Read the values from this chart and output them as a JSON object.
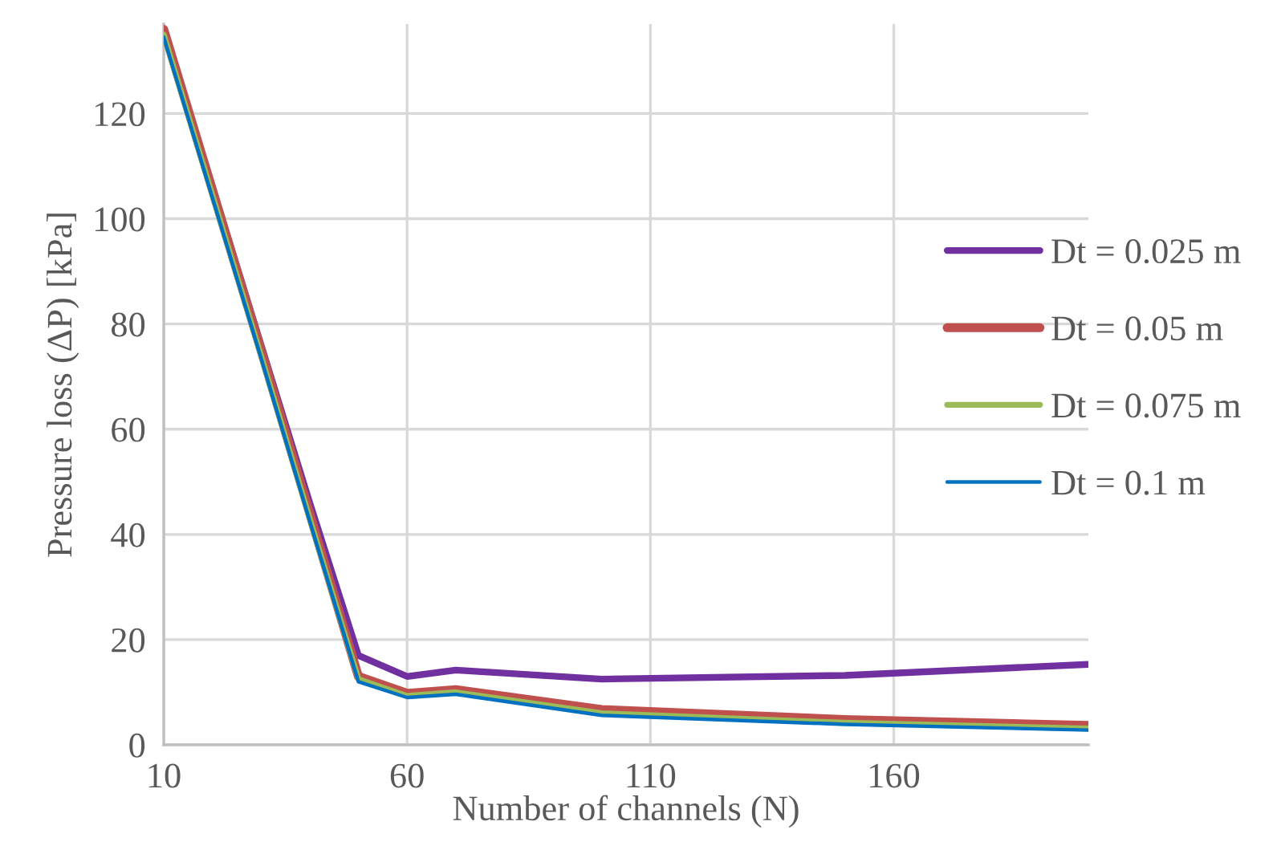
{
  "chart_data": {
    "type": "line",
    "xlabel": "Number of channels (N)",
    "ylabel": "Pressure loss (ΔP) [kPa]",
    "x": [
      10,
      20,
      30,
      40,
      50,
      60,
      70,
      100,
      150,
      200
    ],
    "series": [
      {
        "name": "Dt = 0.025 m",
        "color": "#7030a0",
        "values": [
          136,
          106,
          76,
          46,
          17,
          13,
          14.2,
          12.5,
          13.2,
          15.3
        ]
      },
      {
        "name": "Dt = 0.05 m",
        "color": "#c0504d",
        "values": [
          136,
          105.5,
          75,
          44,
          13,
          9.8,
          10.5,
          6.7,
          4.8,
          3.7
        ]
      },
      {
        "name": "Dt = 0.075 m",
        "color": "#9bbb59",
        "values": [
          135,
          104.5,
          74,
          43,
          12.5,
          9.3,
          10,
          6,
          4.2,
          3.1
        ]
      },
      {
        "name": "Dt = 0.1 m",
        "color": "#0070c0",
        "values": [
          134.5,
          104,
          73.5,
          42.5,
          12,
          9,
          9.6,
          5.6,
          3.9,
          2.8
        ]
      }
    ],
    "xlim": [
      10,
      200
    ],
    "xticks": [
      10,
      60,
      110,
      160
    ],
    "ylim": [
      0,
      137
    ],
    "yticks": [
      0,
      20,
      40,
      60,
      80,
      100,
      120
    ],
    "grid": true,
    "legend": "right",
    "marker": "none",
    "line_style": "solid"
  }
}
